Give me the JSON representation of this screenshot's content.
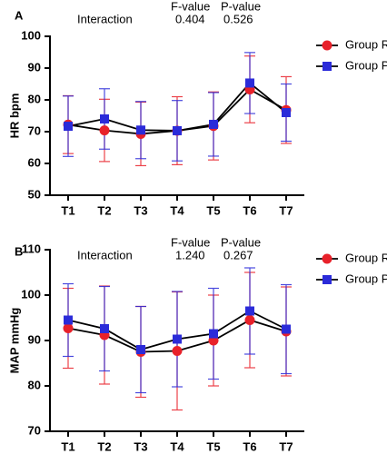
{
  "chart_data": [
    {
      "type": "line",
      "panel": "A",
      "y_label": "HR bpm",
      "annotations": [
        "Interaction",
        "F-value",
        "P-value",
        "0.404",
        "0.526"
      ],
      "categories": [
        "T1",
        "T2",
        "T3",
        "T4",
        "T5",
        "T6",
        "T7"
      ],
      "series": [
        {
          "name": "Group R",
          "color": "#e8212a",
          "marker": "circle",
          "values": [
            72.2,
            70.4,
            69.3,
            70.3,
            71.8,
            83.3,
            76.8
          ],
          "errors": [
            9.1,
            9.8,
            10.0,
            10.7,
            10.7,
            10.5,
            10.5
          ]
        },
        {
          "name": "Group P",
          "color": "#2b2bd9",
          "marker": "square",
          "values": [
            71.7,
            74.0,
            70.5,
            70.3,
            72.3,
            85.3,
            76.0
          ],
          "errors": [
            9.5,
            9.5,
            9.0,
            9.5,
            10.0,
            9.6,
            9.0
          ]
        }
      ],
      "ylim": [
        50,
        100
      ],
      "yticks": [
        50,
        60,
        70,
        80,
        90,
        100
      ]
    },
    {
      "type": "line",
      "panel": "B",
      "y_label": "MAP mmHg",
      "annotations": [
        "Interaction",
        "F-value",
        "P-value",
        "1.240",
        "0.267"
      ],
      "categories": [
        "T1",
        "T2",
        "T3",
        "T4",
        "T5",
        "T6",
        "T7"
      ],
      "series": [
        {
          "name": "Group R",
          "color": "#e8212a",
          "marker": "circle",
          "values": [
            92.7,
            91.2,
            87.5,
            87.7,
            90.0,
            94.5,
            92.0
          ],
          "errors": [
            8.8,
            10.8,
            10.0,
            13.0,
            10.0,
            10.5,
            9.8
          ]
        },
        {
          "name": "Group P",
          "color": "#2b2bd9",
          "marker": "square",
          "values": [
            94.5,
            92.6,
            88.0,
            90.3,
            91.5,
            96.5,
            92.5
          ],
          "errors": [
            8.0,
            9.3,
            9.5,
            10.5,
            10.0,
            9.5,
            9.8
          ]
        }
      ],
      "ylim": [
        70,
        110
      ],
      "yticks": [
        70,
        80,
        90,
        100,
        110
      ]
    }
  ]
}
